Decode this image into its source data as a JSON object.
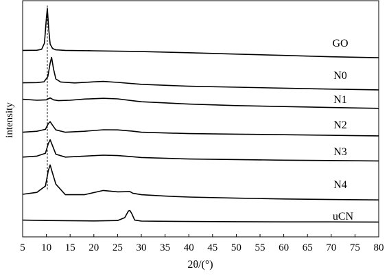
{
  "chart_data": {
    "type": "line",
    "xlabel": "2θ/(°)",
    "ylabel": "intensity",
    "xlim": [
      5,
      80
    ],
    "x_ticks": [
      5,
      10,
      15,
      20,
      25,
      30,
      35,
      40,
      45,
      50,
      55,
      60,
      65,
      70,
      75,
      80
    ],
    "y_ticks": false,
    "grid": false,
    "reference_line": {
      "x": 10.2,
      "style": "dashed"
    },
    "series": [
      {
        "name": "GO",
        "x": [
          5,
          8,
          9,
          9.6,
          10,
          10.2,
          10.5,
          10.8,
          11.3,
          12,
          14,
          20,
          30,
          40,
          50,
          60,
          70,
          80
        ],
        "y": [
          0.52,
          0.53,
          0.58,
          0.9,
          2.2,
          2.7,
          1.6,
          0.85,
          0.62,
          0.55,
          0.52,
          0.5,
          0.46,
          0.4,
          0.33,
          0.26,
          0.19,
          0.14
        ]
      },
      {
        "name": "N0",
        "x": [
          5,
          8,
          9.5,
          10.3,
          10.8,
          11.1,
          11.5,
          12,
          13,
          16,
          20,
          22,
          25,
          30,
          40,
          50,
          60,
          70,
          80
        ],
        "y": [
          0.48,
          0.49,
          0.53,
          0.8,
          1.5,
          1.8,
          1.2,
          0.68,
          0.52,
          0.47,
          0.53,
          0.55,
          0.5,
          0.4,
          0.3,
          0.25,
          0.2,
          0.15,
          0.11
        ]
      },
      {
        "name": "N1",
        "x": [
          5,
          8,
          10,
          10.8,
          11.5,
          12.5,
          15,
          18,
          22,
          25,
          28,
          30,
          40,
          50,
          60,
          70,
          80
        ],
        "y": [
          0.55,
          0.5,
          0.52,
          0.62,
          0.52,
          0.48,
          0.5,
          0.56,
          0.6,
          0.57,
          0.48,
          0.42,
          0.3,
          0.22,
          0.17,
          0.12,
          0.08
        ]
      },
      {
        "name": "N2",
        "x": [
          5,
          8,
          9.8,
          10.4,
          10.8,
          11.2,
          12,
          14,
          18,
          22,
          25,
          28,
          30,
          40,
          50,
          60,
          70,
          80
        ],
        "y": [
          0.3,
          0.35,
          0.45,
          0.75,
          0.85,
          0.7,
          0.42,
          0.3,
          0.35,
          0.43,
          0.42,
          0.36,
          0.3,
          0.23,
          0.2,
          0.17,
          0.14,
          0.11
        ]
      },
      {
        "name": "N3",
        "x": [
          5,
          8,
          9.8,
          10.4,
          10.8,
          11.2,
          12,
          14,
          18,
          22,
          25,
          28,
          30,
          40,
          50,
          60,
          70,
          80
        ],
        "y": [
          0.4,
          0.45,
          0.6,
          1.1,
          1.3,
          1.05,
          0.55,
          0.4,
          0.45,
          0.5,
          0.48,
          0.42,
          0.38,
          0.3,
          0.27,
          0.24,
          0.22,
          0.2
        ]
      },
      {
        "name": "N4",
        "x": [
          5,
          8,
          9.8,
          10.4,
          10.8,
          11.2,
          12,
          14,
          18,
          22,
          25,
          27.6,
          28.2,
          30,
          35,
          40,
          50,
          60,
          70,
          80
        ],
        "y": [
          0.32,
          0.42,
          0.75,
          1.55,
          1.85,
          1.5,
          0.85,
          0.3,
          0.3,
          0.52,
          0.45,
          0.46,
          0.38,
          0.3,
          0.23,
          0.18,
          0.12,
          0.08,
          0.05,
          0.03
        ]
      },
      {
        "name": "uCN",
        "x": [
          5,
          10,
          20,
          25,
          26.5,
          27.3,
          27.6,
          28,
          28.6,
          30,
          40,
          50,
          60,
          70,
          80
        ],
        "y": [
          0.12,
          0.1,
          0.08,
          0.1,
          0.25,
          0.6,
          0.62,
          0.45,
          0.12,
          0.07,
          0.05,
          0.04,
          0.03,
          0.03,
          0.02
        ]
      }
    ]
  }
}
